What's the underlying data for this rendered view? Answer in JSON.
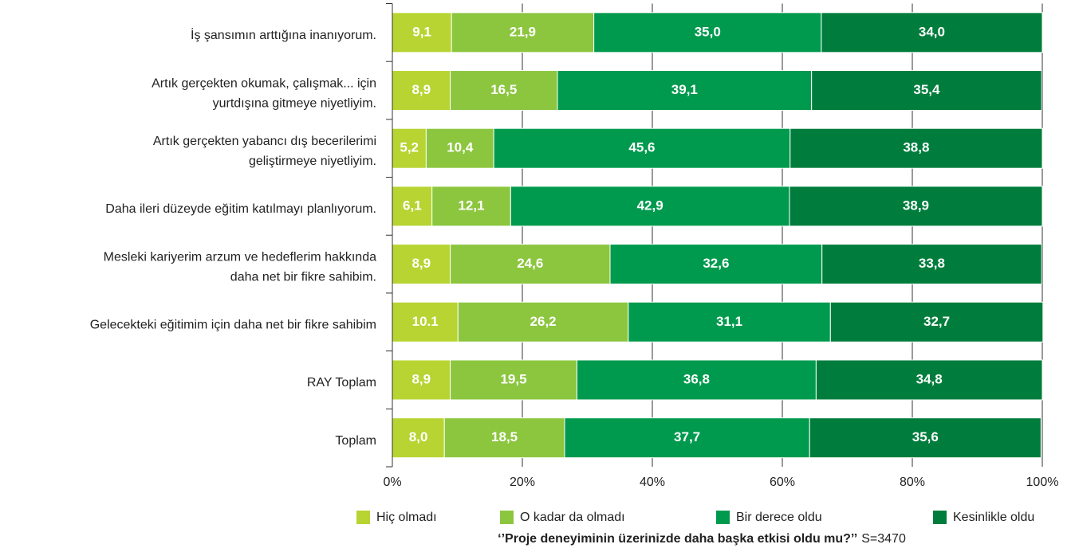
{
  "chart_data": {
    "type": "stacked_barh",
    "categories": [
      [
        "İş şansımın arttığına inanıyorum."
      ],
      [
        "Artık gerçekten okumak, çalışmak... için",
        "yurtdışına gitmeye niyetliyim."
      ],
      [
        "Artık gerçekten yabancı dış becerilerimi",
        "geliştirmeye niyetliyim."
      ],
      [
        "Daha ileri düzeyde eğitim katılmayı planlıyorum."
      ],
      [
        "Mesleki kariyerim arzum ve hedeflerim hakkında",
        "daha net bir fikre sahibim."
      ],
      [
        "Gelecekteki eğitimim için daha net bir fikre sahibim"
      ],
      [
        "RAY Toplam"
      ],
      [
        "Toplam"
      ]
    ],
    "series": [
      {
        "name": "Hiç olmadı",
        "color": "#b7d432",
        "values": [
          9.1,
          8.9,
          5.2,
          6.1,
          8.9,
          10.1,
          8.9,
          8.0
        ],
        "value_labels": [
          "9,1",
          "8,9",
          "5,2",
          "6,1",
          "8,9",
          "10.1",
          "8,9",
          "8,0"
        ]
      },
      {
        "name": "O kadar da olmadı",
        "color": "#8cc63f",
        "values": [
          21.9,
          16.5,
          10.4,
          12.1,
          24.6,
          26.2,
          19.5,
          18.5
        ],
        "value_labels": [
          "21,9",
          "16,5",
          "10,4",
          "12,1",
          "24,6",
          "26,2",
          "19,5",
          "18,5"
        ]
      },
      {
        "name": "Bir derece oldu",
        "color": "#009a4e",
        "values": [
          35.0,
          39.1,
          45.6,
          42.9,
          32.6,
          31.1,
          36.8,
          37.7
        ],
        "value_labels": [
          "35,0",
          "39,1",
          "45,6",
          "42,9",
          "32,6",
          "31,1",
          "36,8",
          "37,7"
        ]
      },
      {
        "name": "Kesinlikle oldu",
        "color": "#007d3c",
        "values": [
          34.0,
          35.4,
          38.8,
          38.9,
          33.8,
          32.7,
          34.8,
          35.6
        ],
        "value_labels": [
          "34,0",
          "35,4",
          "38,8",
          "38,9",
          "33,8",
          "32,7",
          "34,8",
          "35,6"
        ]
      }
    ],
    "xlim": [
      0,
      100
    ],
    "xticks": [
      {
        "value": 0,
        "label": "0%"
      },
      {
        "value": 20,
        "label": "20%"
      },
      {
        "value": 40,
        "label": "40%"
      },
      {
        "value": 60,
        "label": "60%"
      },
      {
        "value": 80,
        "label": "80%"
      },
      {
        "value": 100,
        "label": "100%"
      }
    ],
    "grid": true,
    "legend": "bottom",
    "footnote": "‘’Proje deneyiminin üzerinizde daha başka etkisi oldu mu?’’",
    "annotation": "S=3470"
  }
}
